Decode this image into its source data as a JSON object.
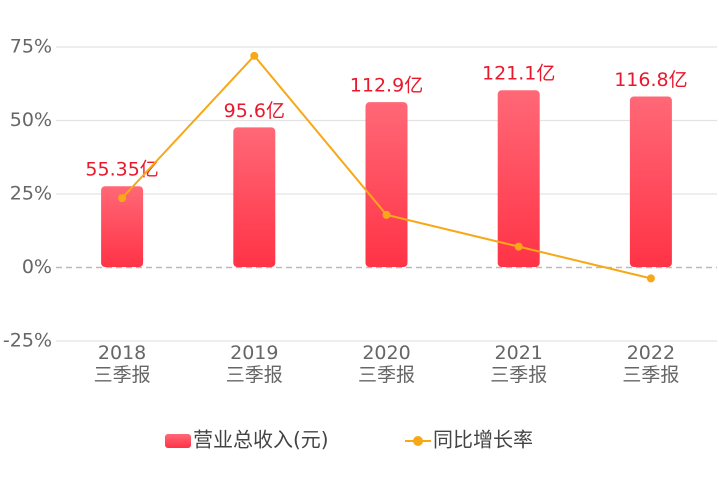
{
  "chart_data": {
    "type": "bar",
    "categories": [
      [
        "2018",
        "三季报"
      ],
      [
        "2019",
        "三季报"
      ],
      [
        "2020",
        "三季报"
      ],
      [
        "2021",
        "三季报"
      ],
      [
        "2022",
        "三季报"
      ]
    ],
    "series": [
      {
        "name": "营业总收入(元)",
        "type": "bar",
        "color": "#ff4a5c",
        "axis": "y2",
        "values": [
          55.35,
          95.6,
          112.9,
          121.1,
          116.8
        ],
        "value_labels": [
          "55.35亿",
          "95.6亿",
          "112.9亿",
          "121.1亿",
          "116.8亿"
        ]
      },
      {
        "name": "同比增长率",
        "type": "line",
        "color": "#f7a816",
        "values": [
          23.6,
          72.0,
          17.9,
          7.1,
          -3.7
        ]
      }
    ],
    "ylim": [
      -25,
      75
    ],
    "yticks": [
      {
        "value": 75,
        "label": "75%"
      },
      {
        "value": 50,
        "label": "50%"
      },
      {
        "value": 25,
        "label": "25%"
      },
      {
        "value": 0,
        "label": "0%"
      },
      {
        "value": -25,
        "label": "-25%"
      }
    ],
    "y2lim": [
      -50.7,
      150.7
    ],
    "grid": true,
    "legend": "bottom"
  }
}
